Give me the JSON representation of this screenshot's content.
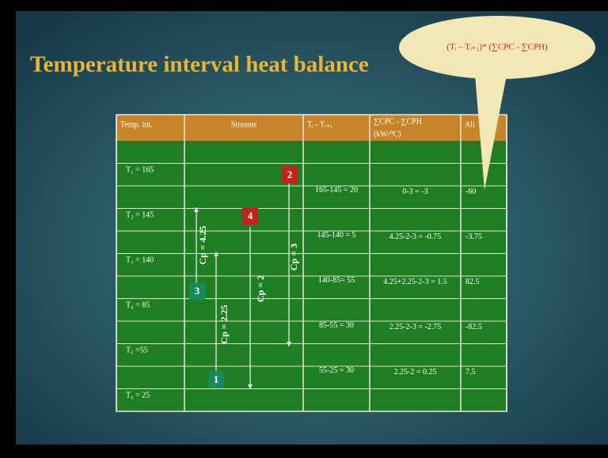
{
  "title": "Temperature interval heat balance",
  "callout": "(Tᵢ – Tᵢ₊₁)* (∑CPC - ∑CPH)",
  "table": {
    "headers": [
      "Temp. int.",
      "Streams",
      "Tᵢ - Tᵢ₊₁",
      "∑CPC - ∑CPH",
      "Ali"
    ],
    "unit": "(kW/⁰C)",
    "temps": [
      "T₁ = 165",
      "T₂ = 145",
      "T₃ = 140",
      "T₄ = 85",
      "T₅ =55",
      "T₆ = 25"
    ],
    "intervals": [
      {
        "dt": "165-145 = 20",
        "cp": "0-3 = -3",
        "heat": "-60"
      },
      {
        "dt": "145-140 = 5",
        "cp": "4.25-2-3 = -0.75",
        "heat": "-3.75"
      },
      {
        "dt": "140-85= 55",
        "cp": "4.25+2.25-2-3 = 1.5",
        "heat": "82.5"
      },
      {
        "dt": "85-55 = 30",
        "cp": "2.25-2-3 = -2.75",
        "heat": "-82.5"
      },
      {
        "dt": "55-25 = 30",
        "cp": "2.25-2 = 0.25",
        "heat": "7.5"
      }
    ]
  },
  "streams": [
    {
      "id": "2",
      "cp": "Cp = 3"
    },
    {
      "id": "4",
      "cp": "Cp = 2"
    },
    {
      "id": "3",
      "cp": "Cp = 4.25"
    },
    {
      "id": "1",
      "cp": "Cp = 2.25"
    }
  ]
}
